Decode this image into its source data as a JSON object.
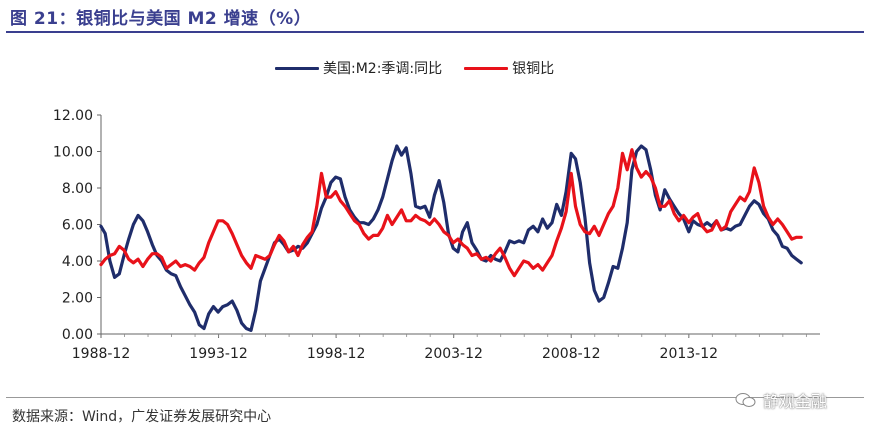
{
  "title": "图 21：银铜比与美国 M2 增速（%）",
  "source": "数据来源：Wind，广发证券发展研究中心",
  "watermark": "静观金融",
  "watermark_icon": "wechat-icon",
  "chart_data": {
    "type": "line",
    "title": "图 21：银铜比与美国 M2 增速（%）",
    "xlabel": "",
    "ylabel": "",
    "ylim": [
      0,
      12
    ],
    "xlim": [
      1988.92,
      2019.5
    ],
    "yticks": [
      "0.00",
      "2.00",
      "4.00",
      "6.00",
      "8.00",
      "10.00",
      "12.00"
    ],
    "xticks": [
      {
        "label": "1988-12",
        "value": 1988.92
      },
      {
        "label": "1993-12",
        "value": 1993.92
      },
      {
        "label": "1998-12",
        "value": 1998.92
      },
      {
        "label": "2003-12",
        "value": 2003.92
      },
      {
        "label": "2008-12",
        "value": 2008.92
      },
      {
        "label": "2013-12",
        "value": 2013.92
      }
    ],
    "grid": false,
    "legend_position": "top",
    "series": [
      {
        "name": "美国:M2:季调:同比",
        "color": "#1f2d6b",
        "points": [
          [
            1988.92,
            5.9
          ],
          [
            1989.1,
            5.5
          ],
          [
            1989.3,
            4.0
          ],
          [
            1989.5,
            3.1
          ],
          [
            1989.7,
            3.3
          ],
          [
            1989.9,
            4.3
          ],
          [
            1990.1,
            5.2
          ],
          [
            1990.3,
            6.0
          ],
          [
            1990.5,
            6.5
          ],
          [
            1990.7,
            6.2
          ],
          [
            1990.9,
            5.6
          ],
          [
            1991.1,
            4.9
          ],
          [
            1991.3,
            4.3
          ],
          [
            1991.5,
            4.0
          ],
          [
            1991.7,
            3.5
          ],
          [
            1991.9,
            3.3
          ],
          [
            1992.1,
            3.2
          ],
          [
            1992.3,
            2.6
          ],
          [
            1992.5,
            2.1
          ],
          [
            1992.7,
            1.6
          ],
          [
            1992.9,
            1.2
          ],
          [
            1993.1,
            0.5
          ],
          [
            1993.3,
            0.3
          ],
          [
            1993.5,
            1.1
          ],
          [
            1993.7,
            1.5
          ],
          [
            1993.9,
            1.2
          ],
          [
            1994.1,
            1.5
          ],
          [
            1994.3,
            1.6
          ],
          [
            1994.5,
            1.8
          ],
          [
            1994.7,
            1.3
          ],
          [
            1994.9,
            0.6
          ],
          [
            1995.1,
            0.3
          ],
          [
            1995.3,
            0.2
          ],
          [
            1995.5,
            1.3
          ],
          [
            1995.7,
            2.9
          ],
          [
            1995.9,
            3.6
          ],
          [
            1996.1,
            4.3
          ],
          [
            1996.3,
            5.0
          ],
          [
            1996.5,
            5.2
          ],
          [
            1996.7,
            4.9
          ],
          [
            1996.9,
            4.5
          ],
          [
            1997.1,
            4.6
          ],
          [
            1997.3,
            4.8
          ],
          [
            1997.5,
            4.7
          ],
          [
            1997.7,
            5.0
          ],
          [
            1997.9,
            5.5
          ],
          [
            1998.1,
            6.0
          ],
          [
            1998.3,
            6.9
          ],
          [
            1998.5,
            7.5
          ],
          [
            1998.7,
            8.3
          ],
          [
            1998.9,
            8.6
          ],
          [
            1999.1,
            8.5
          ],
          [
            1999.3,
            7.5
          ],
          [
            1999.5,
            6.8
          ],
          [
            1999.7,
            6.4
          ],
          [
            1999.9,
            6.1
          ],
          [
            2000.1,
            6.1
          ],
          [
            2000.3,
            6.0
          ],
          [
            2000.5,
            6.3
          ],
          [
            2000.7,
            6.8
          ],
          [
            2000.9,
            7.5
          ],
          [
            2001.1,
            8.5
          ],
          [
            2001.3,
            9.5
          ],
          [
            2001.5,
            10.3
          ],
          [
            2001.7,
            9.8
          ],
          [
            2001.9,
            10.2
          ],
          [
            2002.1,
            8.8
          ],
          [
            2002.3,
            7.0
          ],
          [
            2002.5,
            6.9
          ],
          [
            2002.7,
            7.0
          ],
          [
            2002.9,
            6.4
          ],
          [
            2003.1,
            7.6
          ],
          [
            2003.3,
            8.4
          ],
          [
            2003.5,
            7.2
          ],
          [
            2003.7,
            5.5
          ],
          [
            2003.9,
            4.7
          ],
          [
            2004.1,
            4.5
          ],
          [
            2004.3,
            5.6
          ],
          [
            2004.5,
            6.1
          ],
          [
            2004.7,
            5.0
          ],
          [
            2004.9,
            4.6
          ],
          [
            2005.1,
            4.1
          ],
          [
            2005.3,
            4.0
          ],
          [
            2005.5,
            4.3
          ],
          [
            2005.7,
            4.1
          ],
          [
            2005.9,
            4.0
          ],
          [
            2006.1,
            4.5
          ],
          [
            2006.3,
            5.1
          ],
          [
            2006.5,
            5.0
          ],
          [
            2006.7,
            5.1
          ],
          [
            2006.9,
            5.0
          ],
          [
            2007.1,
            5.7
          ],
          [
            2007.3,
            5.9
          ],
          [
            2007.5,
            5.6
          ],
          [
            2007.7,
            6.3
          ],
          [
            2007.9,
            5.8
          ],
          [
            2008.1,
            6.1
          ],
          [
            2008.3,
            7.1
          ],
          [
            2008.5,
            6.5
          ],
          [
            2008.7,
            7.8
          ],
          [
            2008.92,
            9.9
          ],
          [
            2009.1,
            9.6
          ],
          [
            2009.3,
            8.3
          ],
          [
            2009.5,
            6.4
          ],
          [
            2009.7,
            3.9
          ],
          [
            2009.9,
            2.4
          ],
          [
            2010.1,
            1.8
          ],
          [
            2010.3,
            2.0
          ],
          [
            2010.5,
            2.8
          ],
          [
            2010.7,
            3.7
          ],
          [
            2010.9,
            3.6
          ],
          [
            2011.1,
            4.7
          ],
          [
            2011.3,
            6.1
          ],
          [
            2011.5,
            9.0
          ],
          [
            2011.7,
            10.0
          ],
          [
            2011.9,
            10.3
          ],
          [
            2012.1,
            10.1
          ],
          [
            2012.3,
            9.0
          ],
          [
            2012.5,
            7.6
          ],
          [
            2012.7,
            6.8
          ],
          [
            2012.9,
            7.9
          ],
          [
            2013.1,
            7.4
          ],
          [
            2013.3,
            7.0
          ],
          [
            2013.5,
            6.6
          ],
          [
            2013.7,
            6.3
          ],
          [
            2013.92,
            5.6
          ],
          [
            2014.1,
            6.2
          ],
          [
            2014.3,
            6.0
          ],
          [
            2014.5,
            5.9
          ],
          [
            2014.7,
            6.1
          ],
          [
            2014.9,
            5.9
          ],
          [
            2015.1,
            6.2
          ],
          [
            2015.3,
            5.7
          ],
          [
            2015.5,
            5.8
          ],
          [
            2015.7,
            5.7
          ],
          [
            2015.9,
            5.9
          ],
          [
            2016.1,
            6.0
          ],
          [
            2016.3,
            6.5
          ],
          [
            2016.5,
            7.0
          ],
          [
            2016.7,
            7.3
          ],
          [
            2016.9,
            7.1
          ],
          [
            2017.1,
            6.6
          ],
          [
            2017.3,
            6.3
          ],
          [
            2017.5,
            5.7
          ],
          [
            2017.7,
            5.4
          ],
          [
            2017.9,
            4.8
          ],
          [
            2018.1,
            4.7
          ],
          [
            2018.3,
            4.3
          ],
          [
            2018.5,
            4.1
          ],
          [
            2018.7,
            3.9
          ]
        ]
      },
      {
        "name": "银铜比",
        "color": "#e8121a",
        "points": [
          [
            1988.92,
            3.8
          ],
          [
            1989.1,
            4.1
          ],
          [
            1989.3,
            4.3
          ],
          [
            1989.5,
            4.4
          ],
          [
            1989.7,
            4.8
          ],
          [
            1989.9,
            4.6
          ],
          [
            1990.1,
            4.1
          ],
          [
            1990.3,
            3.9
          ],
          [
            1990.5,
            4.1
          ],
          [
            1990.7,
            3.7
          ],
          [
            1990.9,
            4.1
          ],
          [
            1991.1,
            4.4
          ],
          [
            1991.3,
            4.4
          ],
          [
            1991.5,
            4.2
          ],
          [
            1991.7,
            3.6
          ],
          [
            1991.9,
            3.8
          ],
          [
            1992.1,
            4.0
          ],
          [
            1992.3,
            3.7
          ],
          [
            1992.5,
            3.8
          ],
          [
            1992.7,
            3.7
          ],
          [
            1992.9,
            3.5
          ],
          [
            1993.1,
            3.9
          ],
          [
            1993.3,
            4.2
          ],
          [
            1993.5,
            5.0
          ],
          [
            1993.7,
            5.6
          ],
          [
            1993.9,
            6.2
          ],
          [
            1994.1,
            6.2
          ],
          [
            1994.3,
            6.0
          ],
          [
            1994.5,
            5.5
          ],
          [
            1994.7,
            4.9
          ],
          [
            1994.9,
            4.3
          ],
          [
            1995.1,
            3.9
          ],
          [
            1995.3,
            3.6
          ],
          [
            1995.5,
            4.3
          ],
          [
            1995.7,
            4.2
          ],
          [
            1995.9,
            4.1
          ],
          [
            1996.1,
            4.3
          ],
          [
            1996.3,
            4.9
          ],
          [
            1996.5,
            5.4
          ],
          [
            1996.7,
            5.1
          ],
          [
            1996.9,
            4.5
          ],
          [
            1997.1,
            4.8
          ],
          [
            1997.3,
            4.3
          ],
          [
            1997.5,
            4.9
          ],
          [
            1997.7,
            5.3
          ],
          [
            1997.9,
            5.6
          ],
          [
            1998.1,
            7.0
          ],
          [
            1998.3,
            8.8
          ],
          [
            1998.5,
            7.5
          ],
          [
            1998.7,
            7.5
          ],
          [
            1998.9,
            7.8
          ],
          [
            1999.1,
            7.3
          ],
          [
            1999.3,
            7.0
          ],
          [
            1999.5,
            6.6
          ],
          [
            1999.7,
            6.2
          ],
          [
            1999.9,
            6.0
          ],
          [
            2000.1,
            5.5
          ],
          [
            2000.3,
            5.2
          ],
          [
            2000.5,
            5.4
          ],
          [
            2000.7,
            5.4
          ],
          [
            2000.9,
            5.8
          ],
          [
            2001.1,
            6.5
          ],
          [
            2001.3,
            6.0
          ],
          [
            2001.5,
            6.4
          ],
          [
            2001.7,
            6.8
          ],
          [
            2001.9,
            6.2
          ],
          [
            2002.1,
            6.2
          ],
          [
            2002.3,
            6.5
          ],
          [
            2002.5,
            6.3
          ],
          [
            2002.7,
            6.2
          ],
          [
            2002.9,
            6.0
          ],
          [
            2003.1,
            6.3
          ],
          [
            2003.3,
            6.0
          ],
          [
            2003.5,
            5.6
          ],
          [
            2003.7,
            5.4
          ],
          [
            2003.9,
            5.0
          ],
          [
            2004.1,
            5.2
          ],
          [
            2004.3,
            4.9
          ],
          [
            2004.5,
            4.7
          ],
          [
            2004.7,
            4.3
          ],
          [
            2004.9,
            4.4
          ],
          [
            2005.1,
            4.1
          ],
          [
            2005.3,
            4.2
          ],
          [
            2005.5,
            4.0
          ],
          [
            2005.7,
            4.4
          ],
          [
            2005.9,
            4.7
          ],
          [
            2006.1,
            4.2
          ],
          [
            2006.3,
            3.6
          ],
          [
            2006.5,
            3.2
          ],
          [
            2006.7,
            3.6
          ],
          [
            2006.9,
            4.0
          ],
          [
            2007.1,
            3.9
          ],
          [
            2007.3,
            3.6
          ],
          [
            2007.5,
            3.8
          ],
          [
            2007.7,
            3.5
          ],
          [
            2007.9,
            3.9
          ],
          [
            2008.1,
            4.3
          ],
          [
            2008.3,
            5.1
          ],
          [
            2008.5,
            5.8
          ],
          [
            2008.7,
            6.7
          ],
          [
            2008.92,
            8.8
          ],
          [
            2009.1,
            7.0
          ],
          [
            2009.3,
            6.0
          ],
          [
            2009.5,
            5.6
          ],
          [
            2009.7,
            5.5
          ],
          [
            2009.9,
            5.9
          ],
          [
            2010.1,
            5.4
          ],
          [
            2010.3,
            6.0
          ],
          [
            2010.5,
            6.6
          ],
          [
            2010.7,
            7.0
          ],
          [
            2010.9,
            8.0
          ],
          [
            2011.1,
            9.9
          ],
          [
            2011.3,
            9.0
          ],
          [
            2011.5,
            10.1
          ],
          [
            2011.7,
            9.1
          ],
          [
            2011.9,
            8.6
          ],
          [
            2012.1,
            8.9
          ],
          [
            2012.3,
            8.6
          ],
          [
            2012.5,
            8.0
          ],
          [
            2012.7,
            7.0
          ],
          [
            2012.9,
            7.0
          ],
          [
            2013.1,
            7.3
          ],
          [
            2013.3,
            6.6
          ],
          [
            2013.5,
            6.2
          ],
          [
            2013.7,
            6.5
          ],
          [
            2013.92,
            6.1
          ],
          [
            2014.1,
            6.4
          ],
          [
            2014.3,
            6.6
          ],
          [
            2014.5,
            5.9
          ],
          [
            2014.7,
            5.6
          ],
          [
            2014.9,
            5.7
          ],
          [
            2015.1,
            6.2
          ],
          [
            2015.3,
            5.7
          ],
          [
            2015.5,
            5.9
          ],
          [
            2015.7,
            6.7
          ],
          [
            2015.9,
            7.1
          ],
          [
            2016.1,
            7.5
          ],
          [
            2016.3,
            7.3
          ],
          [
            2016.5,
            7.8
          ],
          [
            2016.7,
            9.1
          ],
          [
            2016.9,
            8.3
          ],
          [
            2017.1,
            7.0
          ],
          [
            2017.3,
            6.4
          ],
          [
            2017.5,
            6.0
          ],
          [
            2017.7,
            6.3
          ],
          [
            2017.9,
            6.0
          ],
          [
            2018.1,
            5.6
          ],
          [
            2018.3,
            5.2
          ],
          [
            2018.5,
            5.3
          ],
          [
            2018.7,
            5.3
          ]
        ]
      }
    ]
  }
}
